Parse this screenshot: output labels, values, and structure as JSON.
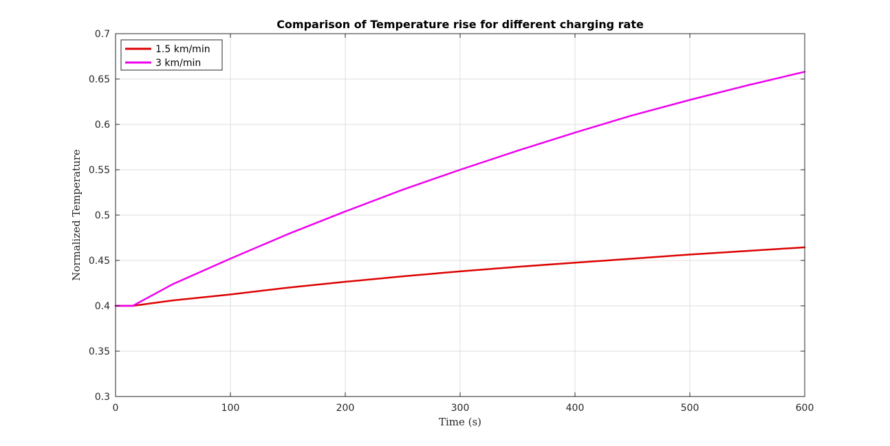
{
  "chart_data": {
    "type": "line",
    "title": "Comparison of Temperature rise for different charging rate",
    "xlabel": "Time (s)",
    "ylabel": "Normalized Temperature",
    "xlim": [
      0,
      600
    ],
    "ylim": [
      0.3,
      0.7
    ],
    "xticks": [
      0,
      100,
      200,
      300,
      400,
      500,
      600
    ],
    "yticks": [
      0.3,
      0.35,
      0.4,
      0.45,
      0.5,
      0.55,
      0.6,
      0.65,
      0.7
    ],
    "xtick_labels": [
      "0",
      "100",
      "200",
      "300",
      "400",
      "500",
      "600"
    ],
    "ytick_labels": [
      "0.3",
      "0.35",
      "0.4",
      "0.45",
      "0.5",
      "0.55",
      "0.6",
      "0.65",
      "0.7"
    ],
    "grid": true,
    "legend_position": "top-left",
    "series": [
      {
        "name": "1.5 km/min",
        "color": "#dd0000",
        "x": [
          0,
          15,
          50,
          100,
          150,
          200,
          250,
          300,
          350,
          400,
          450,
          500,
          550,
          600
        ],
        "y": [
          0.4,
          0.4,
          0.406,
          0.4125,
          0.42,
          0.4265,
          0.4325,
          0.438,
          0.443,
          0.4475,
          0.452,
          0.4565,
          0.4605,
          0.4645
        ]
      },
      {
        "name": "3 km/min",
        "color": "#ee00ee",
        "x": [
          0,
          15,
          50,
          100,
          150,
          200,
          250,
          300,
          350,
          400,
          450,
          500,
          550,
          600
        ],
        "y": [
          0.4,
          0.4,
          0.424,
          0.452,
          0.479,
          0.504,
          0.528,
          0.55,
          0.571,
          0.591,
          0.61,
          0.627,
          0.643,
          0.658
        ]
      }
    ]
  }
}
